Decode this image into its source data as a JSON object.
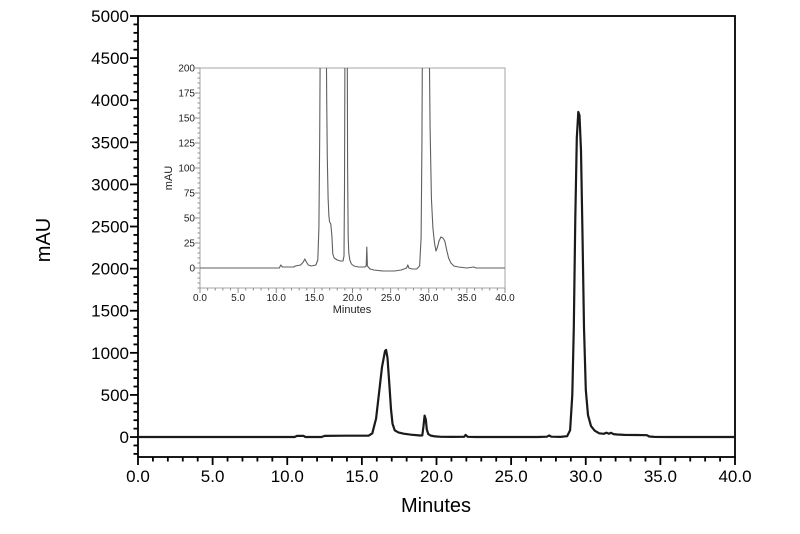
{
  "figure": {
    "description": "HPLC chromatogram with full-scale trace and zoomed inset",
    "colors": {
      "background": "#ffffff",
      "main_axis": "#000000",
      "main_trace": "#1a1a1a",
      "main_text": "#000000",
      "inset_frame": "#a6a6a6",
      "inset_ticks": "#8c8c8c",
      "inset_trace": "#5f5f5f",
      "inset_text": "#222222"
    }
  },
  "chart_data": [
    {
      "id": "main",
      "type": "line",
      "title": "",
      "xlabel": "Minutes",
      "ylabel": "mAU",
      "xlim": [
        0,
        40
      ],
      "ylim": [
        -237,
        5000
      ],
      "grid": false,
      "legend": "none",
      "x_tick_major": 5,
      "x_tick_minor": 1,
      "y_tick_major": 500,
      "y_tick_minor": 100,
      "x_tick_labels": [
        "0.0",
        "5.0",
        "10.0",
        "15.0",
        "20.0",
        "25.0",
        "30.0",
        "35.0",
        "40.0"
      ],
      "y_tick_labels": [
        "0",
        "500",
        "1000",
        "1500",
        "2000",
        "2500",
        "3000",
        "3500",
        "4000",
        "4500",
        "5000"
      ],
      "peaks_note": "major peaks: 16.6 min ~1035 mAU, 19.2 min ~255 mAU, 29.5 min ~3860 mAU",
      "points": [
        [
          0,
          0
        ],
        [
          10.5,
          0
        ],
        [
          10.65,
          14
        ],
        [
          11.1,
          14
        ],
        [
          11.2,
          0
        ],
        [
          12.3,
          0
        ],
        [
          12.5,
          13
        ],
        [
          13.8,
          16
        ],
        [
          15.45,
          16
        ],
        [
          15.7,
          45
        ],
        [
          15.95,
          220
        ],
        [
          16.15,
          520
        ],
        [
          16.35,
          830
        ],
        [
          16.55,
          1020
        ],
        [
          16.62,
          1035
        ],
        [
          16.72,
          940
        ],
        [
          16.85,
          600
        ],
        [
          16.95,
          330
        ],
        [
          17.05,
          160
        ],
        [
          17.2,
          80
        ],
        [
          17.45,
          55
        ],
        [
          17.8,
          40
        ],
        [
          18.3,
          28
        ],
        [
          18.9,
          18
        ],
        [
          19.05,
          20
        ],
        [
          19.12,
          120
        ],
        [
          19.2,
          255
        ],
        [
          19.28,
          210
        ],
        [
          19.35,
          90
        ],
        [
          19.45,
          35
        ],
        [
          19.6,
          18
        ],
        [
          19.9,
          8
        ],
        [
          20.3,
          3
        ],
        [
          21.0,
          2
        ],
        [
          21.85,
          3
        ],
        [
          21.95,
          25
        ],
        [
          22.1,
          3
        ],
        [
          22.6,
          0
        ],
        [
          26.8,
          0
        ],
        [
          27.4,
          4
        ],
        [
          27.55,
          18
        ],
        [
          27.7,
          4
        ],
        [
          28.3,
          2
        ],
        [
          28.75,
          10
        ],
        [
          28.95,
          80
        ],
        [
          29.1,
          500
        ],
        [
          29.2,
          1300
        ],
        [
          29.3,
          2600
        ],
        [
          29.4,
          3550
        ],
        [
          29.5,
          3860
        ],
        [
          29.58,
          3820
        ],
        [
          29.68,
          3400
        ],
        [
          29.78,
          2400
        ],
        [
          29.88,
          1300
        ],
        [
          30.0,
          560
        ],
        [
          30.15,
          260
        ],
        [
          30.35,
          130
        ],
        [
          30.6,
          75
        ],
        [
          30.9,
          45
        ],
        [
          31.2,
          38
        ],
        [
          31.4,
          52
        ],
        [
          31.55,
          38
        ],
        [
          31.7,
          50
        ],
        [
          31.85,
          35
        ],
        [
          32.1,
          30
        ],
        [
          32.6,
          26
        ],
        [
          33.4,
          24
        ],
        [
          34.1,
          22
        ],
        [
          34.25,
          6
        ],
        [
          34.6,
          2
        ],
        [
          35.5,
          0
        ],
        [
          40,
          0
        ]
      ]
    },
    {
      "id": "inset",
      "type": "line",
      "title": "",
      "xlabel": "Minutes",
      "ylabel": "mAU",
      "xlim": [
        0,
        40
      ],
      "ylim": [
        -20,
        200
      ],
      "grid": false,
      "legend": "none",
      "x_tick_major": 5,
      "x_tick_minor": 1,
      "y_tick_major": 25,
      "y_tick_minor": 5,
      "x_tick_labels": [
        "0.0",
        "5.0",
        "10.0",
        "15.0",
        "20.0",
        "25.0",
        "30.0",
        "35.0",
        "40.0"
      ],
      "y_tick_labels": [
        "0",
        "25",
        "50",
        "75",
        "100",
        "125",
        "150",
        "175",
        "200"
      ],
      "peaks_note": "peaks at ~15.8-16.6, ~19.0-19.3 and ~29.2-30.1 min clipped above 200 mAU; small peaks 13.8 min ~9 mAU, 21.9 min ~21 mAU, 31.6 min ~31 mAU",
      "points": [
        [
          0,
          0
        ],
        [
          10.4,
          0
        ],
        [
          10.6,
          3
        ],
        [
          10.8,
          1
        ],
        [
          12.3,
          1
        ],
        [
          12.5,
          2
        ],
        [
          13.2,
          3
        ],
        [
          13.55,
          6
        ],
        [
          13.75,
          9
        ],
        [
          13.95,
          6
        ],
        [
          14.2,
          3
        ],
        [
          14.6,
          2
        ],
        [
          15.2,
          3
        ],
        [
          15.45,
          8
        ],
        [
          15.6,
          40
        ],
        [
          15.7,
          130
        ],
        [
          15.78,
          240
        ],
        [
          16.55,
          240
        ],
        [
          16.62,
          170
        ],
        [
          16.7,
          110
        ],
        [
          16.8,
          70
        ],
        [
          16.9,
          52
        ],
        [
          17.0,
          46
        ],
        [
          17.15,
          44
        ],
        [
          17.3,
          32
        ],
        [
          17.42,
          14
        ],
        [
          17.6,
          10
        ],
        [
          18.0,
          8
        ],
        [
          18.4,
          7
        ],
        [
          18.75,
          7
        ],
        [
          18.88,
          12
        ],
        [
          18.95,
          80
        ],
        [
          19.02,
          240
        ],
        [
          19.3,
          240
        ],
        [
          19.36,
          100
        ],
        [
          19.44,
          30
        ],
        [
          19.52,
          15
        ],
        [
          19.65,
          8
        ],
        [
          19.85,
          4
        ],
        [
          20.2,
          2
        ],
        [
          20.8,
          1
        ],
        [
          21.6,
          1
        ],
        [
          21.8,
          2
        ],
        [
          21.88,
          21
        ],
        [
          21.96,
          2
        ],
        [
          22.3,
          -1
        ],
        [
          22.8,
          -2
        ],
        [
          24.0,
          -3
        ],
        [
          25.5,
          -3
        ],
        [
          26.4,
          -2
        ],
        [
          27.1,
          0
        ],
        [
          27.25,
          3
        ],
        [
          27.4,
          0
        ],
        [
          27.8,
          -1
        ],
        [
          28.4,
          -1
        ],
        [
          28.8,
          2
        ],
        [
          29.0,
          30
        ],
        [
          29.1,
          120
        ],
        [
          29.18,
          240
        ],
        [
          30.05,
          240
        ],
        [
          30.18,
          140
        ],
        [
          30.35,
          70
        ],
        [
          30.55,
          40
        ],
        [
          30.75,
          25
        ],
        [
          30.95,
          17
        ],
        [
          31.15,
          21
        ],
        [
          31.35,
          27
        ],
        [
          31.6,
          31
        ],
        [
          31.85,
          30
        ],
        [
          32.1,
          27
        ],
        [
          32.35,
          18
        ],
        [
          32.6,
          10
        ],
        [
          32.9,
          5
        ],
        [
          33.3,
          2
        ],
        [
          33.9,
          1
        ],
        [
          35.0,
          0
        ],
        [
          35.9,
          1
        ],
        [
          36.2,
          0
        ],
        [
          40,
          0
        ]
      ]
    }
  ]
}
